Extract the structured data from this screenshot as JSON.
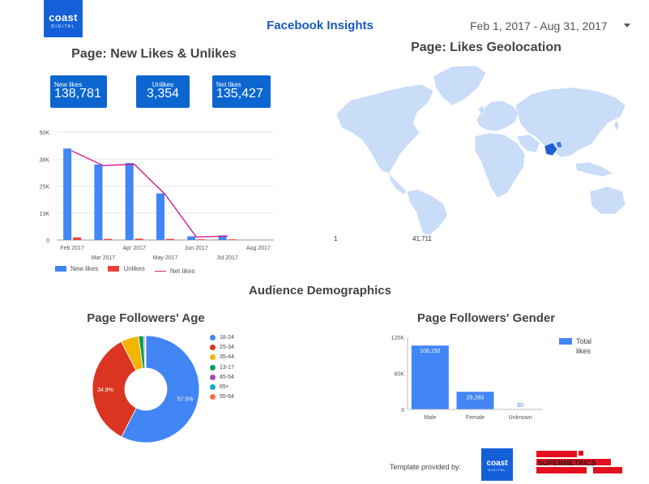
{
  "header": {
    "logo_word": "coast",
    "logo_sub": "DIGITAL",
    "title": "Facebook Insights",
    "date_range": "Feb 1, 2017 - Aug 31, 2017"
  },
  "likes_section": {
    "title": "Page: New Likes & Unlikes",
    "kpis": [
      {
        "label": "New likes",
        "value": "138,781"
      },
      {
        "label": "Unlikes",
        "value": "3,354"
      },
      {
        "label": "Net likes",
        "value": "135,427"
      }
    ]
  },
  "geo_section": {
    "title": "Page: Likes Geolocation",
    "scale_min": "1",
    "scale_max": "41,711"
  },
  "demographics_title": "Audience Demographics",
  "age_section": {
    "title": "Page Followers' Age"
  },
  "gender_section": {
    "title": "Page Followers' Gender"
  },
  "footer": {
    "label": "Template provided by:",
    "logo_word": "coast",
    "logo_sub": "DIGITAL",
    "partner": "SUPERMETRICS"
  },
  "colors": {
    "accent": "#1558c0",
    "kpi_bg": "#0d66d0",
    "new_likes": "#4285f4",
    "unlikes": "#ea4335",
    "net_likes": "#d81b8e",
    "map_land": "#c9dcf8",
    "map_hot": "#1f5fd1"
  },
  "chart_data": [
    {
      "type": "bar",
      "categories": [
        "Feb 2017",
        "Mar 2017",
        "Apr 2017",
        "May 2017",
        "Jun 2017",
        "Jul 2017",
        "Aug 2017"
      ],
      "ylim": [
        0,
        50000
      ],
      "yticks": [
        0,
        12500,
        25000,
        37500,
        50000
      ],
      "ytick_labels": [
        "0",
        "13K",
        "25K",
        "38K",
        "50K"
      ],
      "series": [
        {
          "name": "New likes",
          "type": "bar",
          "values": [
            42400,
            35000,
            35700,
            21600,
            1700,
            2100,
            0
          ]
        },
        {
          "name": "Unlikes",
          "type": "bar",
          "values": [
            1200,
            500,
            600,
            500,
            300,
            300,
            0
          ]
        },
        {
          "name": "Net likes",
          "type": "line",
          "values": [
            41200,
            34500,
            35100,
            21100,
            1400,
            1800,
            0
          ]
        }
      ]
    },
    {
      "type": "pie",
      "categories": [
        "18-24",
        "25-34",
        "35-44",
        "13-17",
        "45-54",
        "65+",
        "55-64"
      ],
      "values": [
        57.5,
        34.9,
        5.4,
        1.5,
        0.4,
        0.2,
        0.1
      ],
      "slice_labels": [
        "57.5%",
        "34.9%",
        "",
        "",
        "",
        "",
        ""
      ],
      "colors": [
        "#4285f4",
        "#db3522",
        "#f4b400",
        "#109d58",
        "#ab47bc",
        "#00acc1",
        "#ff7043"
      ]
    },
    {
      "type": "bar",
      "categories": [
        "Male",
        "Female",
        "Unknown"
      ],
      "series": [
        {
          "name": "Total likes",
          "values": [
            106192,
            29283,
            60
          ]
        }
      ],
      "value_labels": [
        "106,192",
        "29,283",
        "60"
      ],
      "ylim": [
        0,
        120000
      ],
      "yticks": [
        0,
        60000,
        120000
      ],
      "ytick_labels": [
        "0",
        "60K",
        "120K"
      ]
    }
  ]
}
